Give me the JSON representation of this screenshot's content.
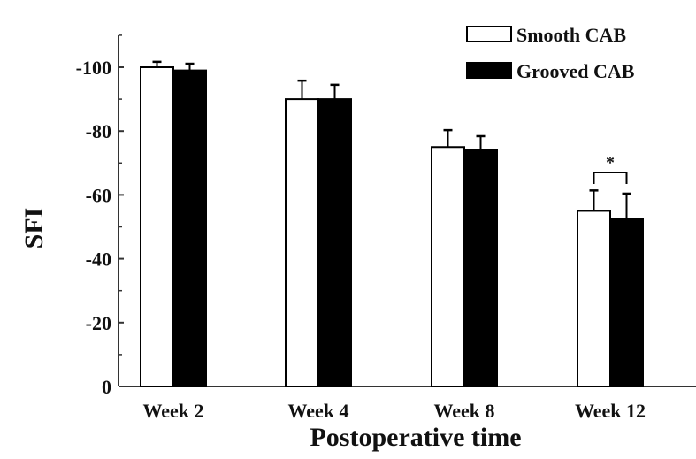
{
  "chart_data": {
    "type": "bar",
    "title": "",
    "xlabel": "Postoperative time",
    "ylabel": "SFI",
    "categories": [
      "Week 2",
      "Week 4",
      "Week 8",
      "Week 12"
    ],
    "series": [
      {
        "name": "Smooth CAB",
        "fill": "#ffffff",
        "values": [
          -100,
          -90,
          -75,
          -55
        ],
        "errors": [
          1.7,
          5.8,
          5.3,
          6.4
        ]
      },
      {
        "name": "Grooved CAB",
        "fill": "#000000",
        "values": [
          -99,
          -90,
          -74,
          -52.6
        ],
        "errors": [
          2.1,
          4.5,
          4.4,
          7.8
        ]
      }
    ],
    "ylim": [
      0,
      -110
    ],
    "yticks": [
      0,
      -20,
      -40,
      -60,
      -80,
      -100
    ],
    "ytick_labels": [
      "0",
      "-20",
      "-40",
      "-60",
      "-80",
      "-100"
    ],
    "minor_ticks": [
      -10,
      -30,
      -50,
      -70,
      -90,
      -110
    ],
    "grid": false,
    "legend_position": "top-right",
    "annotations": [
      {
        "text": "*",
        "category": "Week 12",
        "type": "significance-bracket"
      }
    ]
  }
}
